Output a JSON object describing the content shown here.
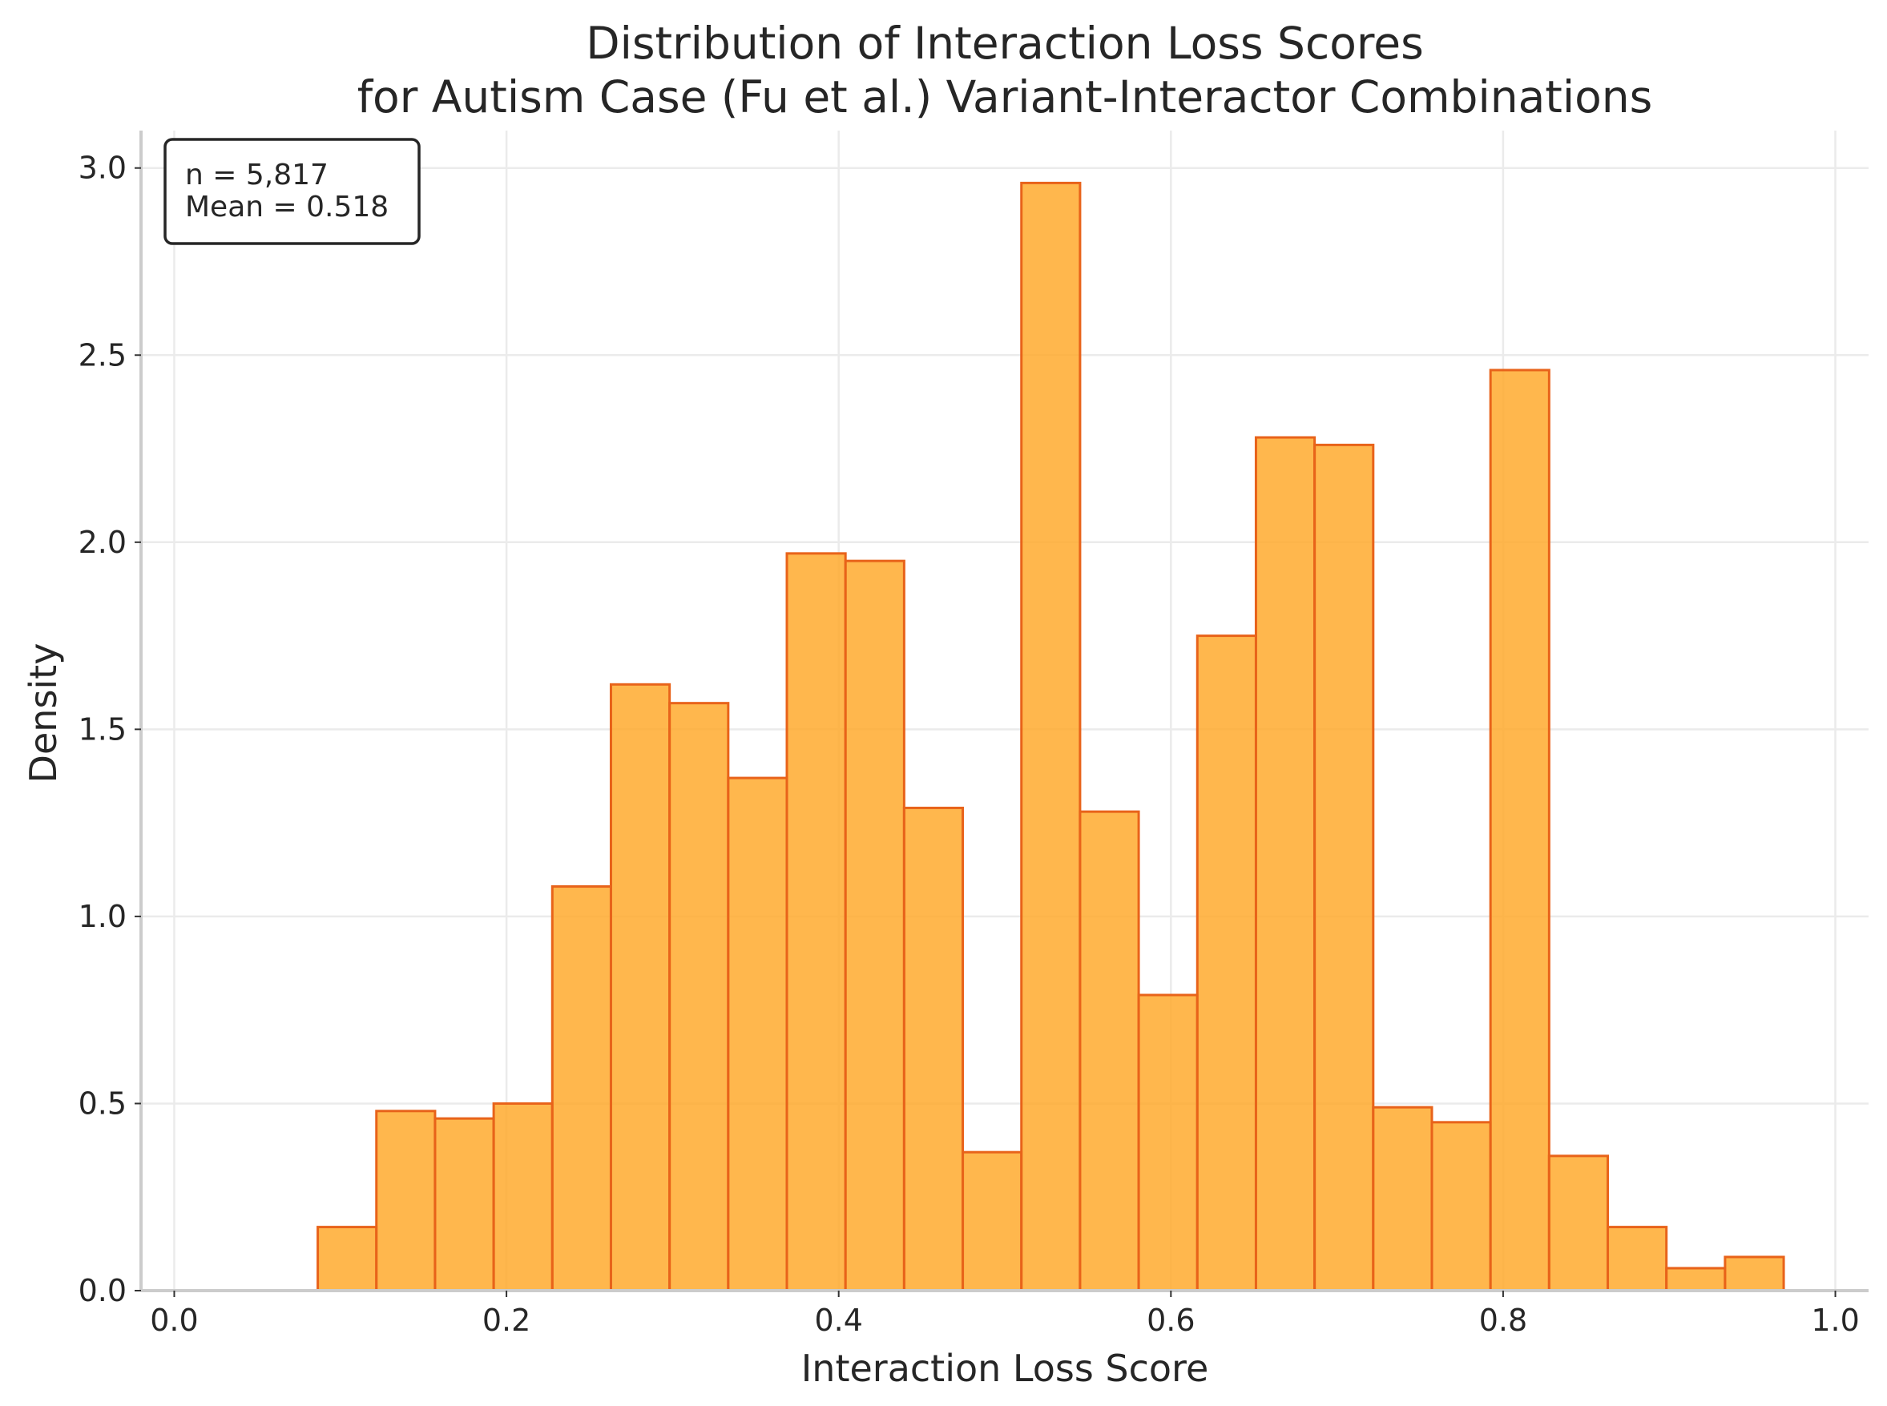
{
  "chart_data": {
    "type": "bar",
    "title_lines": [
      "Distribution of Interaction Loss Scores",
      "for Autism Case (Fu et al.) Variant-Interactor Combinations"
    ],
    "xlabel": "Interaction Loss Score",
    "ylabel": "Density",
    "xlim": [
      -0.02,
      1.02
    ],
    "ylim": [
      0,
      3.1
    ],
    "x_ticks": [
      0.0,
      0.2,
      0.4,
      0.6,
      0.8,
      1.0
    ],
    "x_tick_labels": [
      "0.0",
      "0.2",
      "0.4",
      "0.6",
      "0.8",
      "1.0"
    ],
    "y_ticks": [
      0.0,
      0.5,
      1.0,
      1.5,
      2.0,
      2.5,
      3.0
    ],
    "y_tick_labels": [
      "0.0",
      "0.5",
      "1.0",
      "1.5",
      "2.0",
      "2.5",
      "3.0"
    ],
    "grid": true,
    "bin_edges": [
      0.0864,
      0.1217,
      0.157,
      0.1923,
      0.2276,
      0.2629,
      0.2982,
      0.3335,
      0.3688,
      0.4041,
      0.4394,
      0.4747,
      0.51,
      0.5453,
      0.5806,
      0.6159,
      0.6512,
      0.6865,
      0.7218,
      0.7571,
      0.7924,
      0.8277,
      0.863,
      0.8983,
      0.9336,
      0.9689
    ],
    "values": [
      0.17,
      0.48,
      0.46,
      0.5,
      1.08,
      1.62,
      1.57,
      1.37,
      1.97,
      1.95,
      1.29,
      0.37,
      2.96,
      1.28,
      0.79,
      1.75,
      2.28,
      2.26,
      0.49,
      0.45,
      2.46,
      0.36,
      0.17,
      0.06,
      0.09
    ],
    "bar_fill": "#ffa726",
    "bar_edge": "#e8631a",
    "legend": {
      "placement": "top-left",
      "lines": [
        "n = 5,817",
        "Mean = 0.518"
      ]
    }
  }
}
